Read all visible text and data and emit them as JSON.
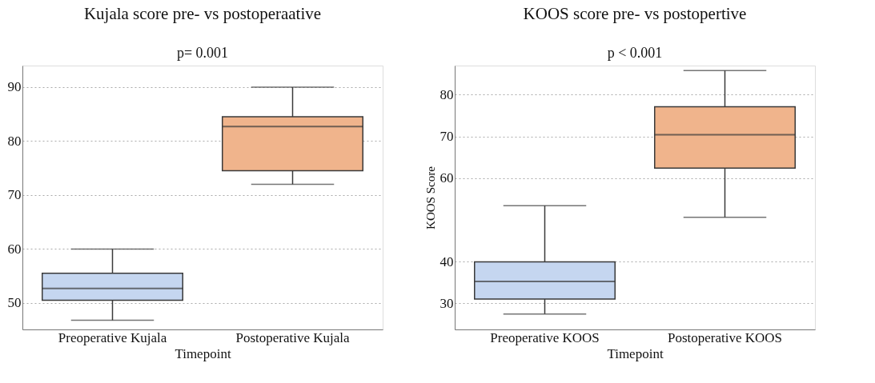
{
  "chart_data": [
    {
      "type": "box",
      "title": "Kujala score pre- vs postoperaative",
      "xlabel": "Timepoint",
      "categories": [
        "Preoperative Kujala",
        "Postoperative Kujala"
      ],
      "colors": [
        "#c5d6f0",
        "#f0b48c"
      ],
      "boxes": [
        {
          "low": 46.8,
          "q1": 50.5,
          "median": 52.7,
          "q3": 55.5,
          "high": 60
        },
        {
          "low": 72,
          "q1": 74.5,
          "median": 82.7,
          "q3": 84.5,
          "high": 90
        }
      ],
      "ylim": [
        45.1,
        94
      ],
      "yticks": [
        50,
        60,
        70,
        80,
        90
      ],
      "grid": "y",
      "annotations": [
        "p= 0.001"
      ]
    },
    {
      "type": "box",
      "title": "KOOS score pre- vs postopertive",
      "xlabel": "Timepoint",
      "ylabel": "KOOS Score",
      "categories": [
        "Preoperative KOOS",
        "Postoperative KOOS"
      ],
      "colors": [
        "#c5d6f0",
        "#f0b48c"
      ],
      "boxes": [
        {
          "low": 27.4,
          "q1": 31,
          "median": 35.2,
          "q3": 39.9,
          "high": 53.4
        },
        {
          "low": 50.6,
          "q1": 62.4,
          "median": 70.4,
          "q3": 77.1,
          "high": 85.8
        }
      ],
      "ylim": [
        23.7,
        87
      ],
      "yticks": [
        30,
        40,
        60,
        70,
        80
      ],
      "grid": "y",
      "annotations": [
        "p < 0.001"
      ]
    }
  ]
}
